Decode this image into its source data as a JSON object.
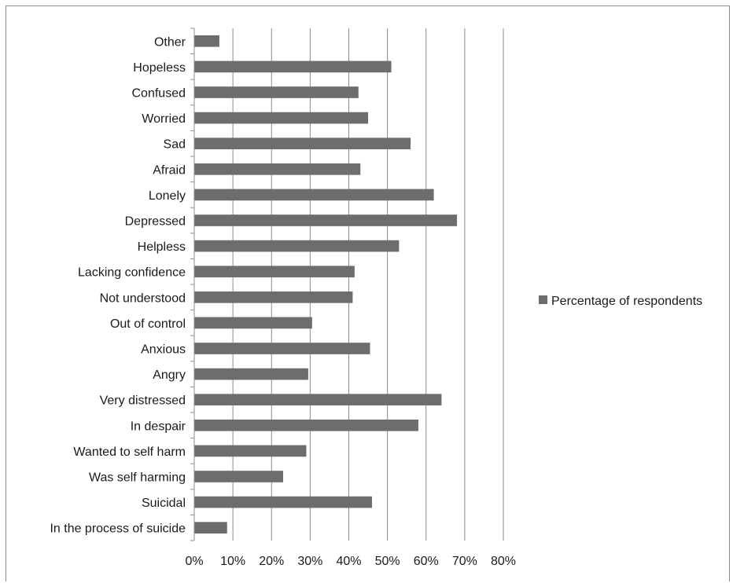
{
  "colors": {
    "bar": "#6d6d6d",
    "grid": "#8c8c8c",
    "axis": "#8c8c8c"
  },
  "chart_data": {
    "type": "bar",
    "orientation": "horizontal",
    "categories": [
      "Other",
      "Hopeless",
      "Confused",
      "Worried",
      "Sad",
      "Afraid",
      "Lonely",
      "Depressed",
      "Helpless",
      "Lacking confidence",
      "Not understood",
      "Out of control",
      "Anxious",
      "Angry",
      "Very distressed",
      "In despair",
      "Wanted to self harm",
      "Was self harming",
      "Suicidal",
      "In the process of suicide"
    ],
    "series": [
      {
        "name": "Percentage of respondents",
        "values": [
          6.5,
          51,
          42.5,
          45,
          56,
          43,
          62,
          68,
          53,
          41.5,
          41,
          30.5,
          45.5,
          29.5,
          64,
          58,
          29,
          23,
          46,
          8.5
        ]
      }
    ],
    "xlim": [
      0,
      80
    ],
    "x_ticks": [
      "0%",
      "10%",
      "20%",
      "30%",
      "40%",
      "50%",
      "60%",
      "70%",
      "80%"
    ],
    "grid": true,
    "legend": {
      "position": "right",
      "entries": [
        "Percentage of respondents"
      ]
    }
  }
}
